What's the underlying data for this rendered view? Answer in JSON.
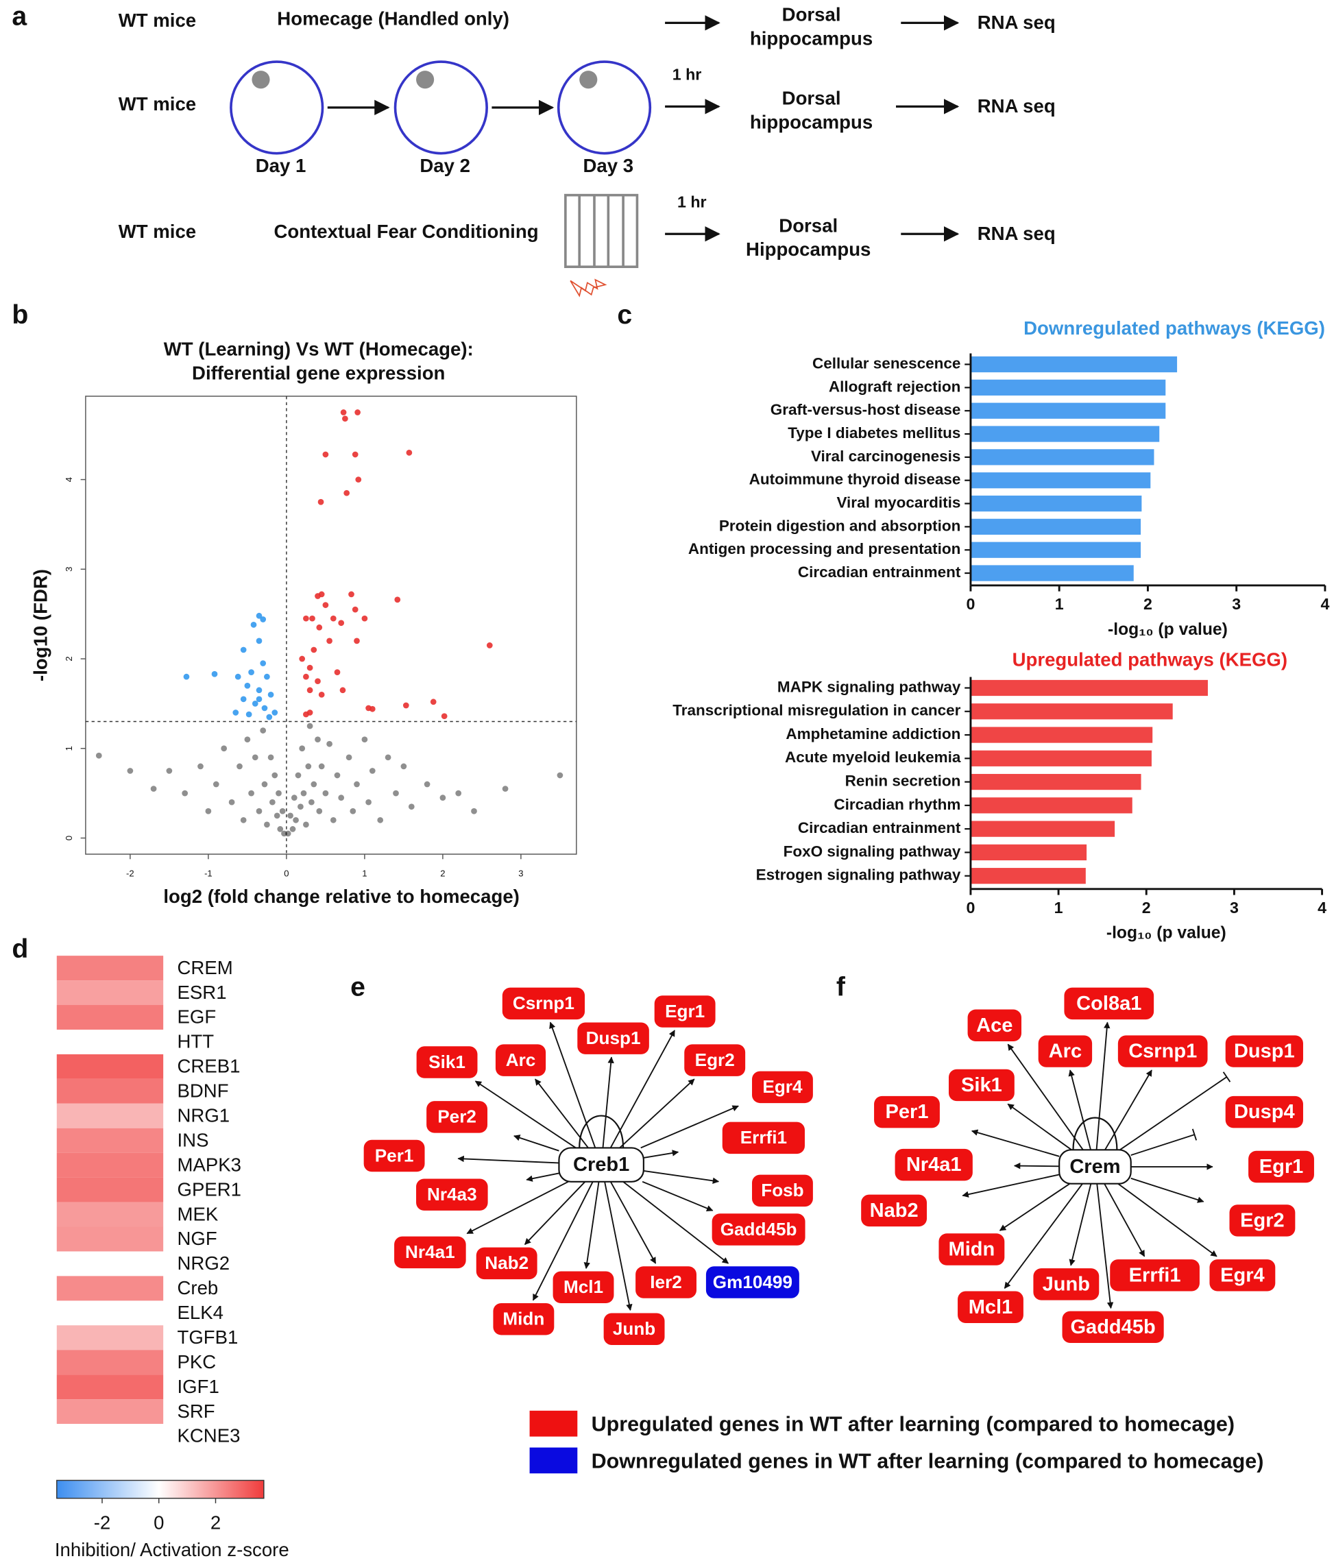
{
  "panels": [
    "a",
    "b",
    "c",
    "d",
    "e",
    "f"
  ],
  "a": {
    "rows": [
      {
        "group": "WT mice",
        "condition": "Homecage (Handled only)",
        "region": [
          "Dorsal",
          "hippocampus"
        ],
        "output": "RNA seq"
      },
      {
        "group": "WT mice",
        "days": [
          "Day 1",
          "Day 2",
          "Day 3"
        ],
        "delay": "1 hr",
        "region": [
          "Dorsal",
          "hippocampus"
        ],
        "output": "RNA seq"
      },
      {
        "group": "WT mice",
        "condition": "Contextual Fear Conditioning",
        "delay": "1 hr",
        "region": [
          "Dorsal",
          "Hippocampus"
        ],
        "output": "RNA seq"
      }
    ]
  },
  "chart_data": [
    {
      "type": "scatter",
      "title": [
        "WT (Learning) Vs WT (Homecage):",
        "Differential gene expression"
      ],
      "xlabel": "log2 (fold change relative to homecage)",
      "ylabel": "-log10 (FDR)",
      "xlim": [
        -2.57,
        3.71
      ],
      "ylim": [
        -0.18,
        4.93
      ],
      "xticks": [
        -2,
        -1,
        0,
        1,
        2,
        3
      ],
      "yticks": [
        0,
        1,
        2,
        3,
        4
      ],
      "thresholds": {
        "x": 0,
        "y": 1.3
      },
      "series": [
        {
          "color": "#333333",
          "x": [
            -2.4,
            -2.0,
            -1.7,
            -1.5,
            -1.3,
            -1.1,
            -1.0,
            -0.9,
            -0.8,
            -0.7,
            -0.6,
            -0.55,
            -0.5,
            -0.45,
            -0.4,
            -0.35,
            -0.3,
            -0.28,
            -0.25,
            -0.2,
            -0.18,
            -0.15,
            -0.12,
            -0.1,
            -0.08,
            -0.05,
            -0.03,
            0.02,
            0.05,
            0.08,
            0.1,
            0.12,
            0.15,
            0.18,
            0.2,
            0.22,
            0.25,
            0.28,
            0.3,
            0.32,
            0.35,
            0.4,
            0.42,
            0.45,
            0.5,
            0.55,
            0.6,
            0.65,
            0.7,
            0.8,
            0.85,
            0.9,
            1.0,
            1.05,
            1.1,
            1.2,
            1.3,
            1.4,
            1.5,
            1.6,
            1.8,
            2.0,
            2.2,
            2.4,
            2.8,
            3.5
          ],
          "values": [
            0.92,
            0.75,
            0.55,
            0.75,
            0.5,
            0.8,
            0.3,
            0.6,
            1.0,
            0.4,
            0.8,
            0.2,
            1.1,
            0.5,
            0.9,
            0.3,
            1.2,
            0.6,
            0.15,
            0.9,
            0.4,
            0.7,
            0.25,
            0.5,
            0.1,
            0.3,
            0.05,
            0.05,
            0.25,
            0.1,
            0.45,
            0.2,
            0.7,
            0.35,
            1.0,
            0.5,
            0.15,
            0.8,
            1.25,
            0.4,
            0.6,
            1.1,
            0.3,
            0.8,
            0.5,
            1.05,
            0.2,
            0.7,
            0.45,
            0.9,
            0.3,
            0.6,
            1.1,
            0.4,
            0.75,
            0.2,
            0.9,
            0.5,
            0.8,
            0.35,
            0.6,
            0.45,
            0.5,
            0.3,
            0.55,
            0.7
          ]
        },
        {
          "color": "#3399ee",
          "x": [
            -1.28,
            -0.92,
            -0.35,
            -0.3,
            -0.42,
            -0.35,
            -0.55,
            -0.3,
            -0.45,
            -0.25,
            -0.62,
            -0.5,
            -0.35,
            -0.2,
            -0.55,
            -0.4,
            -0.28,
            -0.65,
            -0.48,
            -0.22,
            -0.35,
            -0.15
          ],
          "values": [
            1.8,
            1.83,
            2.48,
            2.44,
            2.38,
            2.2,
            2.1,
            1.95,
            1.85,
            1.8,
            1.8,
            1.7,
            1.65,
            1.6,
            1.55,
            1.5,
            1.45,
            1.4,
            1.38,
            1.35,
            1.55,
            1.4
          ]
        },
        {
          "color": "#e8302f",
          "x": [
            0.73,
            0.91,
            0.75,
            0.5,
            0.88,
            1.57,
            0.77,
            0.92,
            0.44,
            1.42,
            2.6,
            0.4,
            0.45,
            0.83,
            0.25,
            0.33,
            0.6,
            1.0,
            0.7,
            0.42,
            0.55,
            0.9,
            0.35,
            0.2,
            0.3,
            0.65,
            0.25,
            0.4,
            0.72,
            0.3,
            0.45,
            1.05,
            1.1,
            1.53,
            1.88,
            2.02,
            0.25,
            0.3,
            0.5,
            0.88
          ],
          "values": [
            4.75,
            4.75,
            4.68,
            4.28,
            4.28,
            4.3,
            3.85,
            4.0,
            3.75,
            2.66,
            2.15,
            2.7,
            2.72,
            2.72,
            2.45,
            2.45,
            2.45,
            2.45,
            2.4,
            2.35,
            2.2,
            2.2,
            2.1,
            2.0,
            1.9,
            1.85,
            1.8,
            1.75,
            1.65,
            1.65,
            1.6,
            1.45,
            1.44,
            1.48,
            1.52,
            1.36,
            1.38,
            1.4,
            2.6,
            2.55
          ]
        }
      ]
    },
    {
      "type": "hbar",
      "title": "Downregulated pathways (KEGG)",
      "color": "#4d9ff0",
      "title_color": "#3a96e0",
      "categories": [
        "Cellular senescence",
        "Allograft rejection",
        "Graft-versus-host disease",
        "Type I diabetes mellitus",
        "Viral carcinogenesis",
        "Autoimmune thyroid disease",
        "Viral myocarditis",
        "Protein digestion and absorption",
        "Antigen processing and presentation",
        "Circadian entrainment"
      ],
      "values": [
        2.33,
        2.2,
        2.2,
        2.13,
        2.07,
        2.03,
        1.93,
        1.92,
        1.92,
        1.84
      ],
      "xlabel": "-log₁₀ (p value)",
      "xlim": [
        0,
        4
      ],
      "xticks": [
        0,
        1,
        2,
        3,
        4
      ]
    },
    {
      "type": "hbar",
      "title": "Upregulated pathways (KEGG)",
      "color": "#f04545",
      "title_color": "#e82323",
      "categories": [
        "MAPK signaling pathway",
        "Transcriptional misregulation in cancer",
        "Amphetamine addiction",
        "Acute myeloid leukemia",
        "Renin secretion",
        "Circadian rhythm",
        "Circadian entrainment",
        "FoxO signaling pathway",
        "Estrogen signaling pathway"
      ],
      "values": [
        2.7,
        2.3,
        2.07,
        2.06,
        1.94,
        1.84,
        1.64,
        1.32,
        1.31
      ],
      "xlabel": "-log₁₀ (p value)",
      "xlim": [
        0,
        4
      ],
      "xticks": [
        0,
        1,
        2,
        3,
        4
      ]
    },
    {
      "type": "heatmap",
      "categories": [
        "CREM",
        "ESR1",
        "EGF",
        "HTT",
        "CREB1",
        "BDNF",
        "NRG1",
        "INS",
        "MAPK3",
        "GPER1",
        "MEK",
        "NGF",
        "NRG2",
        "Creb",
        "ELK4",
        "TGFB1",
        "PKC",
        "IGF1",
        "SRF",
        "KCNE3"
      ],
      "values": [
        2.4,
        1.8,
        2.5,
        null,
        3.0,
        2.6,
        1.4,
        2.3,
        2.5,
        2.6,
        1.9,
        2.0,
        null,
        2.2,
        null,
        1.4,
        2.4,
        2.8,
        2.0,
        null
      ],
      "clim": [
        -3.6,
        3.7
      ],
      "cticks": [
        -2,
        0,
        2
      ],
      "colors": [
        "#3d8ef0",
        "#ffffff",
        "#f03c3c"
      ],
      "clabel": "Inhibition/ Activation z-score"
    }
  ],
  "network_e": {
    "center": "Creb1",
    "nodes": [
      {
        "label": "Csrnp1",
        "color": "#ee1111"
      },
      {
        "label": "Dusp1",
        "color": "#ee1111"
      },
      {
        "label": "Egr1",
        "color": "#ee1111"
      },
      {
        "label": "Sik1",
        "color": "#ee1111"
      },
      {
        "label": "Arc",
        "color": "#ee1111"
      },
      {
        "label": "Egr2",
        "color": "#ee1111"
      },
      {
        "label": "Egr4",
        "color": "#ee1111"
      },
      {
        "label": "Per2",
        "color": "#ee1111"
      },
      {
        "label": "Errfi1",
        "color": "#ee1111"
      },
      {
        "label": "Per1",
        "color": "#ee1111"
      },
      {
        "label": "Fosb",
        "color": "#ee1111"
      },
      {
        "label": "Nr4a3",
        "color": "#ee1111"
      },
      {
        "label": "Gadd45b",
        "color": "#ee1111"
      },
      {
        "label": "Nr4a1",
        "color": "#ee1111"
      },
      {
        "label": "Nab2",
        "color": "#ee1111"
      },
      {
        "label": "Mcl1",
        "color": "#ee1111"
      },
      {
        "label": "Ier2",
        "color": "#ee1111"
      },
      {
        "label": "Gm10499",
        "color": "#0a0ae0"
      },
      {
        "label": "Midn",
        "color": "#ee1111"
      },
      {
        "label": "Junb",
        "color": "#ee1111"
      }
    ]
  },
  "network_f": {
    "center": "Crem",
    "nodes": [
      {
        "label": "Ace",
        "color": "#ee1111"
      },
      {
        "label": "Col8a1",
        "color": "#ee1111"
      },
      {
        "label": "Arc",
        "color": "#ee1111"
      },
      {
        "label": "Csrnp1",
        "color": "#ee1111"
      },
      {
        "label": "Dusp1",
        "color": "#ee1111",
        "edge": "inhibit"
      },
      {
        "label": "Sik1",
        "color": "#ee1111"
      },
      {
        "label": "Dusp4",
        "color": "#ee1111",
        "edge": "inhibit"
      },
      {
        "label": "Per1",
        "color": "#ee1111"
      },
      {
        "label": "Nr4a1",
        "color": "#ee1111"
      },
      {
        "label": "Egr1",
        "color": "#ee1111"
      },
      {
        "label": "Nab2",
        "color": "#ee1111"
      },
      {
        "label": "Egr2",
        "color": "#ee1111"
      },
      {
        "label": "Midn",
        "color": "#ee1111"
      },
      {
        "label": "Egr4",
        "color": "#ee1111"
      },
      {
        "label": "Errfi1",
        "color": "#ee1111"
      },
      {
        "label": "Junb",
        "color": "#ee1111"
      },
      {
        "label": "Mcl1",
        "color": "#ee1111"
      },
      {
        "label": "Gadd45b",
        "color": "#ee1111"
      }
    ]
  },
  "legend": [
    {
      "label": "Upregulated genes in WT after learning (compared to homecage)",
      "color": "#ee1111"
    },
    {
      "label": "Downregulated genes in WT after learning (compared to homecage)",
      "color": "#0a0ae0"
    }
  ]
}
